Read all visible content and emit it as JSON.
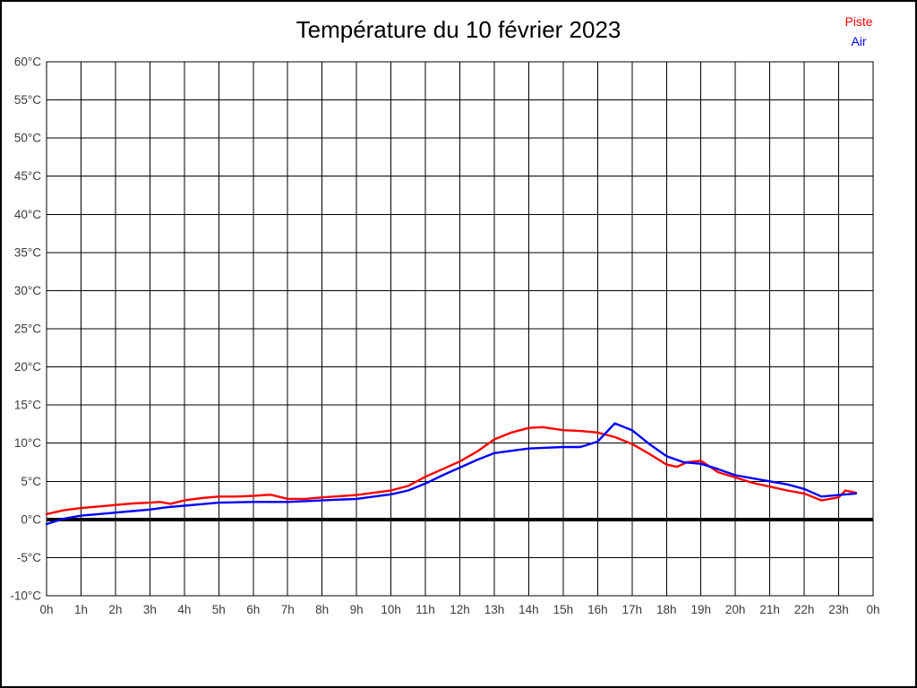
{
  "title": "Température du 10 février 2023",
  "legend": {
    "piste_label": "Piste",
    "air_label": "Air"
  },
  "colors": {
    "piste": "#ff0000",
    "air": "#0000ff",
    "grid": "#000000",
    "zero_line": "#000000",
    "background": "#ffffff",
    "tick_text": "#3a3a3a"
  },
  "chart_data": {
    "type": "line",
    "title": "Température du 10 février 2023",
    "xlabel": "",
    "ylabel": "",
    "xlim": [
      0,
      24
    ],
    "ylim": [
      -10,
      60
    ],
    "grid": true,
    "legend_position": "top-right",
    "x_tick_step_hours": 1,
    "x_tick_labels": [
      "0h",
      "1h",
      "2h",
      "3h",
      "4h",
      "5h",
      "6h",
      "7h",
      "8h",
      "9h",
      "10h",
      "11h",
      "12h",
      "13h",
      "14h",
      "15h",
      "16h",
      "17h",
      "18h",
      "19h",
      "20h",
      "21h",
      "22h",
      "23h",
      "0h"
    ],
    "y_ticks": [
      60,
      55,
      50,
      45,
      40,
      35,
      30,
      25,
      20,
      15,
      10,
      5,
      0,
      -5,
      -10
    ],
    "y_tick_suffix": "°C",
    "zero_line": {
      "value": 0,
      "stroke_width": 4
    },
    "series": [
      {
        "name": "Piste",
        "color": "#ff0000",
        "points": [
          [
            0,
            0.7
          ],
          [
            0.5,
            1.2
          ],
          [
            1,
            1.5
          ],
          [
            1.5,
            1.7
          ],
          [
            2,
            1.9
          ],
          [
            2.5,
            2.1
          ],
          [
            3,
            2.2
          ],
          [
            3.3,
            2.3
          ],
          [
            3.6,
            2.05
          ],
          [
            4,
            2.5
          ],
          [
            4.5,
            2.8
          ],
          [
            5,
            3.0
          ],
          [
            5.5,
            3.0
          ],
          [
            6,
            3.1
          ],
          [
            6.5,
            3.25
          ],
          [
            7,
            2.7
          ],
          [
            7.5,
            2.7
          ],
          [
            8,
            2.9
          ],
          [
            8.5,
            3.05
          ],
          [
            9,
            3.2
          ],
          [
            9.5,
            3.5
          ],
          [
            10,
            3.8
          ],
          [
            10.5,
            4.4
          ],
          [
            11,
            5.6
          ],
          [
            11.5,
            6.6
          ],
          [
            12,
            7.6
          ],
          [
            12.5,
            8.9
          ],
          [
            13,
            10.5
          ],
          [
            13.5,
            11.4
          ],
          [
            14,
            12.0
          ],
          [
            14.4,
            12.1
          ],
          [
            15,
            11.7
          ],
          [
            15.5,
            11.6
          ],
          [
            16,
            11.4
          ],
          [
            16.5,
            10.8
          ],
          [
            17,
            9.9
          ],
          [
            17.5,
            8.6
          ],
          [
            18,
            7.2
          ],
          [
            18.3,
            6.9
          ],
          [
            18.6,
            7.5
          ],
          [
            19,
            7.7
          ],
          [
            19.5,
            6.2
          ],
          [
            20,
            5.5
          ],
          [
            20.5,
            4.8
          ],
          [
            21,
            4.3
          ],
          [
            21.5,
            3.8
          ],
          [
            22,
            3.4
          ],
          [
            22.5,
            2.5
          ],
          [
            23,
            2.9
          ],
          [
            23.2,
            3.8
          ],
          [
            23.5,
            3.5
          ]
        ]
      },
      {
        "name": "Air",
        "color": "#0000ff",
        "points": [
          [
            0,
            -0.6
          ],
          [
            0.5,
            0.1
          ],
          [
            1,
            0.5
          ],
          [
            1.5,
            0.7
          ],
          [
            2,
            0.9
          ],
          [
            2.5,
            1.1
          ],
          [
            3,
            1.3
          ],
          [
            3.5,
            1.6
          ],
          [
            4,
            1.8
          ],
          [
            4.5,
            2.0
          ],
          [
            5,
            2.2
          ],
          [
            5.5,
            2.25
          ],
          [
            6,
            2.3
          ],
          [
            6.5,
            2.3
          ],
          [
            7,
            2.3
          ],
          [
            7.5,
            2.4
          ],
          [
            8,
            2.5
          ],
          [
            8.5,
            2.6
          ],
          [
            9,
            2.7
          ],
          [
            9.5,
            3.0
          ],
          [
            10,
            3.3
          ],
          [
            10.5,
            3.8
          ],
          [
            11,
            4.7
          ],
          [
            11.5,
            5.8
          ],
          [
            12,
            6.8
          ],
          [
            12.5,
            7.8
          ],
          [
            13,
            8.7
          ],
          [
            13.5,
            9.0
          ],
          [
            14,
            9.3
          ],
          [
            14.5,
            9.4
          ],
          [
            15,
            9.5
          ],
          [
            15.5,
            9.5
          ],
          [
            16,
            10.2
          ],
          [
            16.5,
            12.6
          ],
          [
            17,
            11.7
          ],
          [
            17.5,
            9.9
          ],
          [
            18,
            8.3
          ],
          [
            18.5,
            7.5
          ],
          [
            19,
            7.3
          ],
          [
            19.5,
            6.6
          ],
          [
            20,
            5.8
          ],
          [
            20.5,
            5.4
          ],
          [
            21,
            5.0
          ],
          [
            21.5,
            4.6
          ],
          [
            22,
            4.0
          ],
          [
            22.5,
            3.0
          ],
          [
            23,
            3.2
          ],
          [
            23.5,
            3.4
          ]
        ]
      }
    ]
  }
}
